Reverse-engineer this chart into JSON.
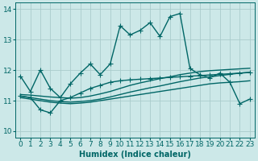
{
  "xlabel": "Humidex (Indice chaleur)",
  "xlim": [
    -0.5,
    23.5
  ],
  "ylim": [
    9.8,
    14.2
  ],
  "yticks": [
    10,
    11,
    12,
    13,
    14
  ],
  "xticks": [
    0,
    1,
    2,
    3,
    4,
    5,
    6,
    7,
    8,
    9,
    10,
    11,
    12,
    13,
    14,
    15,
    16,
    17,
    18,
    19,
    20,
    21,
    22,
    23
  ],
  "bg_color": "#cce8e8",
  "line_color": "#006666",
  "grid_color": "#aacccc",
  "line_width": 1.0,
  "marker_size": 4,
  "xlabel_fontsize": 7,
  "tick_fontsize": 6.5,
  "main_x": [
    0,
    1,
    2,
    3,
    4,
    5,
    6,
    7,
    8,
    9,
    10,
    11,
    12,
    13,
    14,
    15,
    16,
    17,
    18,
    19,
    20,
    21,
    22,
    23
  ],
  "main_y": [
    11.8,
    11.3,
    12.0,
    11.4,
    11.1,
    11.55,
    11.9,
    12.2,
    11.85,
    12.2,
    13.45,
    13.15,
    13.3,
    13.55,
    13.1,
    13.75,
    13.85,
    12.05,
    11.85,
    11.75,
    11.9,
    11.6,
    10.9,
    11.05
  ],
  "env1_x": [
    0,
    1,
    2,
    3,
    4,
    5,
    6,
    7,
    8,
    9,
    10,
    11,
    12,
    13,
    14,
    15,
    16,
    17,
    18,
    19,
    20,
    21,
    22,
    23
  ],
  "env1_y": [
    11.1,
    11.05,
    11.0,
    10.95,
    10.92,
    10.9,
    10.92,
    10.95,
    11.0,
    11.05,
    11.1,
    11.15,
    11.2,
    11.25,
    11.3,
    11.35,
    11.4,
    11.45,
    11.5,
    11.55,
    11.58,
    11.6,
    11.62,
    11.65
  ],
  "env2_x": [
    0,
    1,
    2,
    3,
    4,
    5,
    6,
    7,
    8,
    9,
    10,
    11,
    12,
    13,
    14,
    15,
    16,
    17,
    18,
    19,
    20,
    21,
    22,
    23
  ],
  "env2_y": [
    11.15,
    11.1,
    11.05,
    11.0,
    10.97,
    10.95,
    10.97,
    11.0,
    11.05,
    11.12,
    11.2,
    11.28,
    11.35,
    11.42,
    11.48,
    11.55,
    11.62,
    11.68,
    11.74,
    11.78,
    11.82,
    11.86,
    11.9,
    11.93
  ],
  "env3_x": [
    0,
    1,
    2,
    3,
    4,
    5,
    6,
    7,
    8,
    9,
    10,
    11,
    12,
    13,
    14,
    15,
    16,
    17,
    18,
    19,
    20,
    21,
    22,
    23
  ],
  "env3_y": [
    11.2,
    11.18,
    11.15,
    11.12,
    11.1,
    11.08,
    11.1,
    11.15,
    11.22,
    11.3,
    11.4,
    11.5,
    11.58,
    11.65,
    11.72,
    11.78,
    11.85,
    11.9,
    11.95,
    11.98,
    12.0,
    12.02,
    12.04,
    12.06
  ],
  "jagged_x": [
    0,
    1,
    2,
    3,
    4,
    5,
    6,
    7,
    8,
    9,
    10,
    11,
    12,
    13,
    14,
    15,
    16,
    17,
    18,
    19,
    20,
    21,
    22,
    23
  ],
  "jagged_y": [
    11.15,
    11.1,
    10.7,
    10.6,
    11.0,
    11.1,
    11.25,
    11.4,
    11.5,
    11.6,
    11.65,
    11.68,
    11.7,
    11.72,
    11.74,
    11.76,
    11.78,
    11.8,
    11.82,
    11.84,
    11.86,
    11.88,
    11.9,
    11.92
  ]
}
